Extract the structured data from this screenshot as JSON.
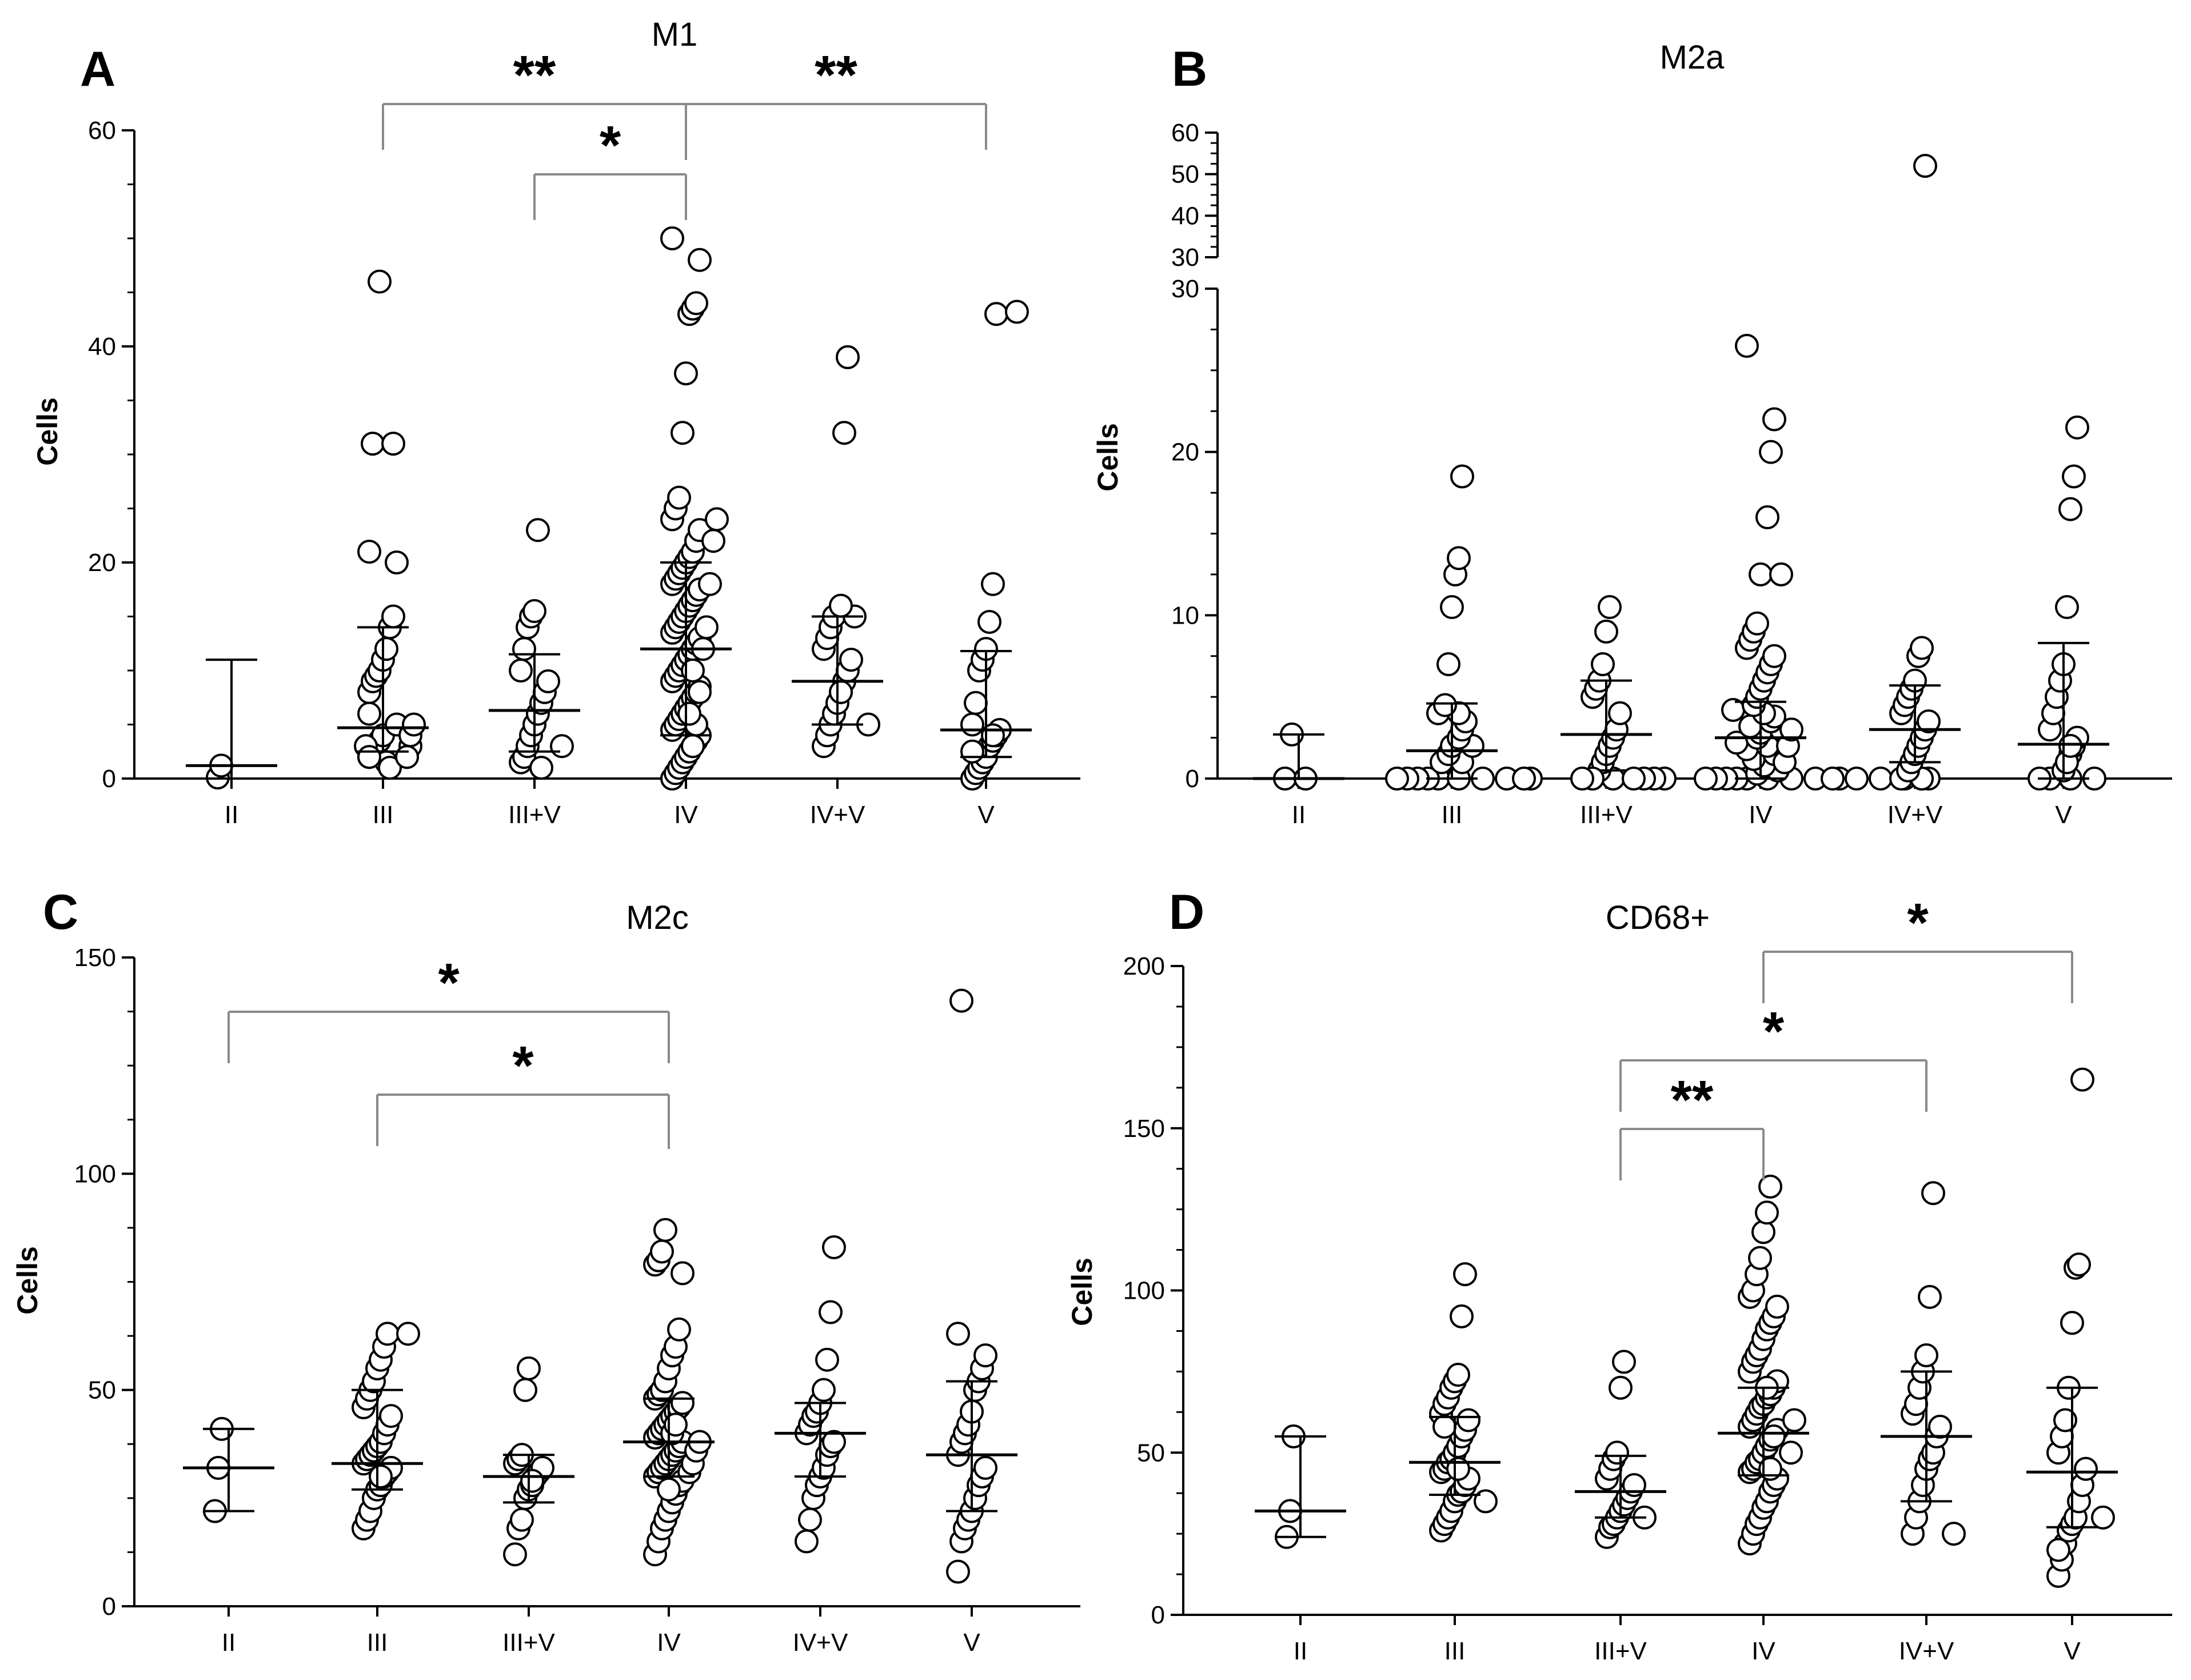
{
  "chart_data": [
    {
      "type": "scatter",
      "panel": "A",
      "title": "M1",
      "ylabel": "Cells",
      "categories": [
        "II",
        "III",
        "III+V",
        "IV",
        "IV+V",
        "V"
      ],
      "ylim": [
        0,
        60
      ],
      "yticks": [
        0,
        20,
        40,
        60
      ],
      "points": [
        [
          0.1,
          1.2
        ],
        [
          2,
          2.5,
          3,
          3.5,
          4,
          1.5,
          2,
          3,
          5,
          8,
          9,
          9.5,
          10,
          11,
          12,
          14,
          15,
          20,
          21,
          31,
          31,
          46,
          3,
          2,
          1,
          4,
          5,
          6,
          2
        ],
        [
          1.5,
          2,
          3,
          4,
          5,
          6,
          7,
          8,
          9,
          10,
          12,
          14,
          15,
          15.5,
          23,
          1,
          3
        ],
        [
          0,
          0.5,
          1,
          1.5,
          2,
          2.5,
          3,
          3.5,
          4,
          4.5,
          5,
          5.5,
          6,
          6.5,
          7,
          7.5,
          8,
          8.5,
          9,
          9.5,
          10,
          10.5,
          11,
          11.5,
          12,
          12.5,
          13,
          13.5,
          14,
          14.5,
          15,
          15.5,
          16,
          16.5,
          17,
          17.5,
          18,
          18.5,
          19,
          19.5,
          20,
          20.5,
          21,
          22,
          23,
          24,
          25,
          26,
          32,
          37.5,
          43,
          43.5,
          44,
          48,
          50,
          3,
          5,
          8,
          12,
          14,
          18,
          22,
          24,
          6,
          10
        ],
        [
          3,
          4,
          5,
          6,
          7,
          8,
          9,
          10,
          11,
          12,
          13,
          14,
          15,
          15,
          16,
          32,
          39,
          5,
          8
        ],
        [
          0,
          0.5,
          1,
          1.5,
          2,
          3,
          3.5,
          4,
          4.5,
          5,
          7,
          10,
          11,
          12,
          14.5,
          18,
          43,
          43.2,
          2.5,
          4
        ]
      ],
      "medians": [
        1.2,
        4.7,
        6.3,
        12,
        9,
        4.5
      ],
      "err_low": [
        0,
        2.5,
        2.5,
        4,
        5,
        2
      ],
      "err_high": [
        11,
        14,
        11.5,
        20,
        15,
        11.8
      ],
      "significance": [
        {
          "from": "III",
          "to": "IV",
          "label": "**"
        },
        {
          "from": "IV",
          "to": "V",
          "label": "**"
        },
        {
          "from": "III+V",
          "to": "IV",
          "label": "*"
        }
      ]
    },
    {
      "type": "scatter",
      "panel": "B",
      "title": "M2a",
      "ylabel": "Cells",
      "categories": [
        "II",
        "III",
        "III+V",
        "IV",
        "IV+V",
        "V"
      ],
      "ylim": [
        0,
        30
      ],
      "ylim_upper": [
        30,
        60
      ],
      "yticks": [
        0,
        10,
        20,
        30
      ],
      "yticks_upper": [
        30,
        40,
        50,
        60
      ],
      "points": [
        [
          0,
          0,
          2.7
        ],
        [
          0,
          0,
          0,
          0,
          0,
          0,
          0,
          0,
          0,
          0,
          1,
          1,
          1.5,
          2,
          2,
          2.5,
          3,
          3.5,
          4,
          4,
          4.5,
          7,
          10.5,
          12.5,
          13.5,
          18.5
        ],
        [
          0,
          0,
          0.5,
          1,
          1.5,
          2,
          2.5,
          3,
          4,
          5,
          5.5,
          6,
          7,
          9,
          10.5
        ],
        [
          0,
          0,
          0,
          0,
          0,
          0,
          0,
          0,
          0,
          0,
          0,
          0,
          0,
          0,
          0,
          0,
          0,
          0,
          0,
          0,
          0,
          0.3,
          0.5,
          0.8,
          1,
          1.2,
          1.5,
          1.8,
          2,
          2.2,
          2.5,
          2.8,
          3,
          3.2,
          3.5,
          3.8,
          4,
          4.2,
          4.5,
          5,
          5.5,
          6,
          6.5,
          7,
          7.5,
          8,
          8.5,
          9,
          9.5,
          12.5,
          12.5,
          16,
          20,
          22,
          26.5,
          1,
          2,
          3
        ],
        [
          0,
          0,
          0.5,
          1,
          1.5,
          2,
          2.5,
          3,
          3.5,
          4,
          4.5,
          5,
          5.5,
          6,
          7.5,
          8,
          52
        ],
        [
          0,
          0,
          0,
          0,
          0.5,
          1,
          1.5,
          2,
          2.5,
          3,
          4,
          5,
          6,
          7,
          10.5,
          16.5,
          18.5,
          21.5,
          1,
          2
        ]
      ],
      "medians": [
        0,
        1.7,
        2.7,
        2.5,
        3,
        2.1
      ],
      "err_low": [
        0,
        0,
        0.5,
        0,
        1,
        0
      ],
      "err_high": [
        2.7,
        4.6,
        6,
        4.7,
        5.7,
        8.3
      ],
      "significance": []
    },
    {
      "type": "scatter",
      "panel": "C",
      "title": "M2c",
      "ylabel": "Cells",
      "categories": [
        "II",
        "III",
        "III+V",
        "IV",
        "IV+V",
        "V"
      ],
      "ylim": [
        0,
        150
      ],
      "yticks": [
        0,
        50,
        100,
        150
      ],
      "points": [
        [
          22,
          32,
          41
        ],
        [
          18,
          20,
          22,
          25,
          27,
          28,
          30,
          31,
          32,
          33,
          34,
          35,
          36,
          37,
          38,
          40,
          42,
          44,
          46,
          48,
          50,
          52,
          55,
          57,
          60,
          63,
          63,
          30
        ],
        [
          12,
          18,
          20,
          25,
          27,
          28,
          30,
          31,
          32,
          33,
          34,
          35,
          50,
          55,
          29
        ],
        [
          12,
          15,
          18,
          20,
          22,
          24,
          26,
          28,
          29,
          30,
          31,
          32,
          33,
          34,
          35,
          36,
          37,
          38,
          39,
          40,
          41,
          42,
          43,
          44,
          45,
          46,
          47,
          48,
          49,
          50,
          52,
          55,
          58,
          60,
          64,
          77,
          79,
          80,
          82,
          87,
          27,
          31,
          33,
          36,
          38,
          40,
          42
        ],
        [
          15,
          20,
          25,
          28,
          30,
          32,
          35,
          37,
          38,
          40,
          42,
          44,
          45,
          47,
          50,
          57,
          68,
          83
        ],
        [
          8,
          15,
          18,
          20,
          22,
          25,
          28,
          30,
          32,
          35,
          38,
          40,
          42,
          45,
          50,
          52,
          55,
          58,
          63,
          140
        ]
      ],
      "medians": [
        32,
        33,
        30,
        38,
        40,
        35
      ],
      "err_low": [
        22,
        27,
        24,
        30,
        30,
        22
      ],
      "err_high": [
        41,
        50,
        35,
        48,
        47,
        52
      ],
      "significance": [
        {
          "from": "II",
          "to": "IV",
          "label": "*"
        },
        {
          "from": "III",
          "to": "IV",
          "label": "*"
        }
      ]
    },
    {
      "type": "scatter",
      "panel": "D",
      "title": "CD68+",
      "ylabel": "Cells",
      "categories": [
        "II",
        "III",
        "III+V",
        "IV",
        "IV+V",
        "V"
      ],
      "ylim": [
        0,
        200
      ],
      "yticks": [
        0,
        50,
        100,
        150,
        200
      ],
      "points": [
        [
          24,
          32,
          55
        ],
        [
          26,
          28,
          30,
          32,
          35,
          37,
          38,
          40,
          42,
          44,
          45,
          47,
          48,
          50,
          52,
          55,
          57,
          60,
          62,
          65,
          67,
          70,
          72,
          74,
          92,
          105,
          35,
          45,
          58
        ],
        [
          24,
          27,
          28,
          30,
          32,
          34,
          36,
          38,
          40,
          42,
          45,
          48,
          50,
          70,
          78,
          30
        ],
        [
          22,
          25,
          28,
          30,
          33,
          35,
          38,
          40,
          42,
          44,
          45,
          47,
          48,
          50,
          52,
          54,
          55,
          57,
          58,
          60,
          62,
          64,
          65,
          67,
          68,
          70,
          72,
          75,
          78,
          80,
          82,
          85,
          88,
          90,
          92,
          95,
          98,
          100,
          105,
          110,
          118,
          124,
          132,
          50,
          60,
          70,
          45,
          55
        ],
        [
          25,
          30,
          35,
          40,
          45,
          48,
          50,
          55,
          58,
          62,
          65,
          70,
          75,
          80,
          98,
          130,
          25
        ],
        [
          12,
          17,
          22,
          26,
          28,
          30,
          35,
          40,
          45,
          50,
          55,
          60,
          70,
          90,
          107,
          108,
          165,
          30,
          20
        ]
      ],
      "medians": [
        32,
        47,
        38,
        56,
        55,
        44
      ],
      "err_low": [
        24,
        37,
        30,
        43,
        35,
        27
      ],
      "err_high": [
        55,
        61,
        49,
        70,
        75,
        70
      ],
      "significance": [
        {
          "from": "IV",
          "to": "V",
          "label": "*"
        },
        {
          "from": "III+V",
          "to": "IV+V",
          "label": "*"
        },
        {
          "from": "III+V",
          "to": "IV",
          "label": "**"
        }
      ]
    }
  ]
}
